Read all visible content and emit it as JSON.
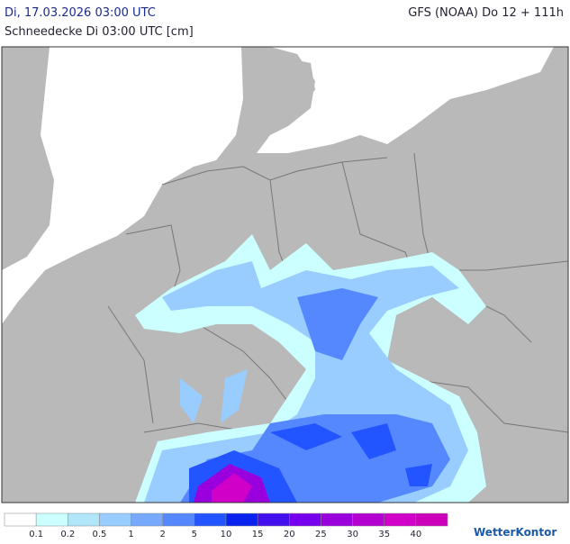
{
  "header": {
    "title_left": "Di, 17.03.2026 03:00 UTC",
    "title_right": "GFS (NOAA) Do 12 + 111h",
    "subtitle": "Schneedecke Di 03:00 UTC [cm]"
  },
  "legend": {
    "colors": [
      "#ffffff",
      "#ccffff",
      "#b0e6f8",
      "#99ccff",
      "#77aaff",
      "#5588ff",
      "#2255ff",
      "#0a22ee",
      "#4411ee",
      "#7700ee",
      "#9900dd",
      "#b300d0",
      "#d000c8",
      "#cc00bb"
    ],
    "labels": [
      "0.1",
      "0.2",
      "0.5",
      "1",
      "2",
      "5",
      "10",
      "15",
      "20",
      "25",
      "30",
      "35",
      "40"
    ]
  },
  "brand": "WetterKontor"
}
